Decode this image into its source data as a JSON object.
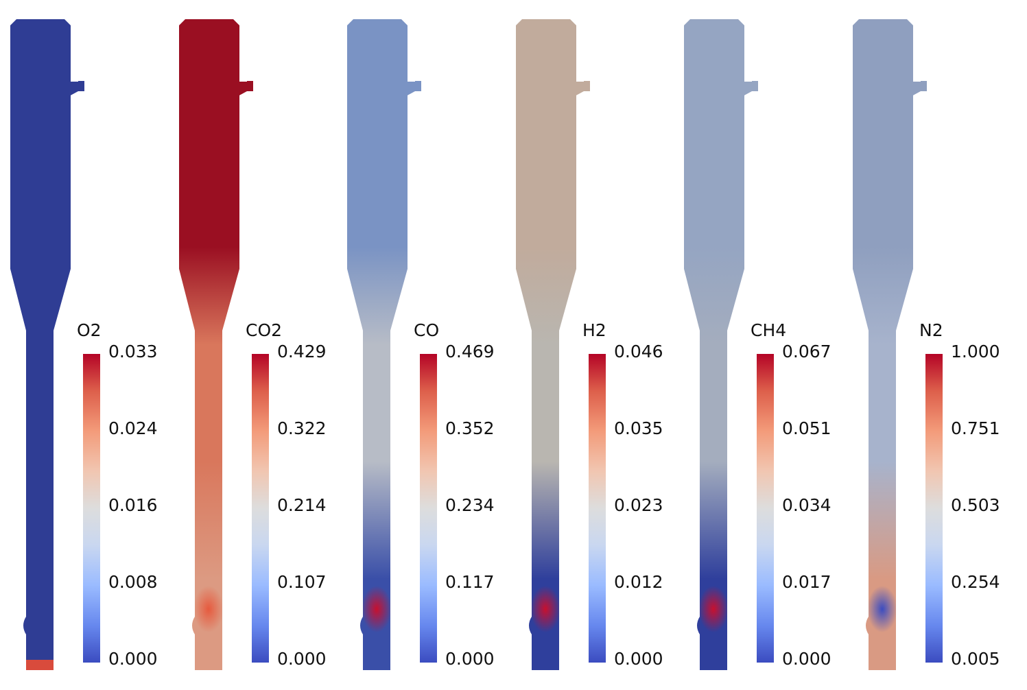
{
  "panels": [
    {
      "species": "O2",
      "ticks": [
        "0.033",
        "0.024",
        "0.016",
        "0.008",
        "0.000"
      ],
      "colors": {
        "top": "#2f3d94",
        "neck": "#2f3d94",
        "bottom": "#2f3d94",
        "base": "#d94b3c"
      }
    },
    {
      "species": "CO2",
      "ticks": [
        "0.429",
        "0.322",
        "0.214",
        "0.107",
        "0.000"
      ],
      "colors": {
        "top": "#9a0f22",
        "neck": "#d9775c",
        "bottom": "#dc9a82",
        "hotspot": "#e65a3e"
      }
    },
    {
      "species": "CO",
      "ticks": [
        "0.469",
        "0.352",
        "0.234",
        "0.117",
        "0.000"
      ],
      "colors": {
        "top": "#7a93c4",
        "neck": "#b7bcc6",
        "bottom": "#3a4fa8",
        "hotspot": "#c8102e"
      }
    },
    {
      "species": "H2",
      "ticks": [
        "0.046",
        "0.035",
        "0.023",
        "0.012",
        "0.000"
      ],
      "colors": {
        "top": "#c1ab9c",
        "neck": "#b9b6b0",
        "bottom": "#2f3f9c",
        "hotspot": "#c8102e"
      }
    },
    {
      "species": "CH4",
      "ticks": [
        "0.067",
        "0.051",
        "0.034",
        "0.017",
        "0.000"
      ],
      "colors": {
        "top": "#95a5c2",
        "neck": "#a4adbe",
        "bottom": "#2f3f9c",
        "hotspot": "#c8102e"
      }
    },
    {
      "species": "N2",
      "ticks": [
        "1.000",
        "0.751",
        "0.503",
        "0.254",
        "0.005"
      ],
      "colors": {
        "top": "#8f9fbf",
        "neck": "#a7b3cc",
        "bottom": "#d99a83",
        "hotspot": "#3b4cc0"
      }
    }
  ]
}
